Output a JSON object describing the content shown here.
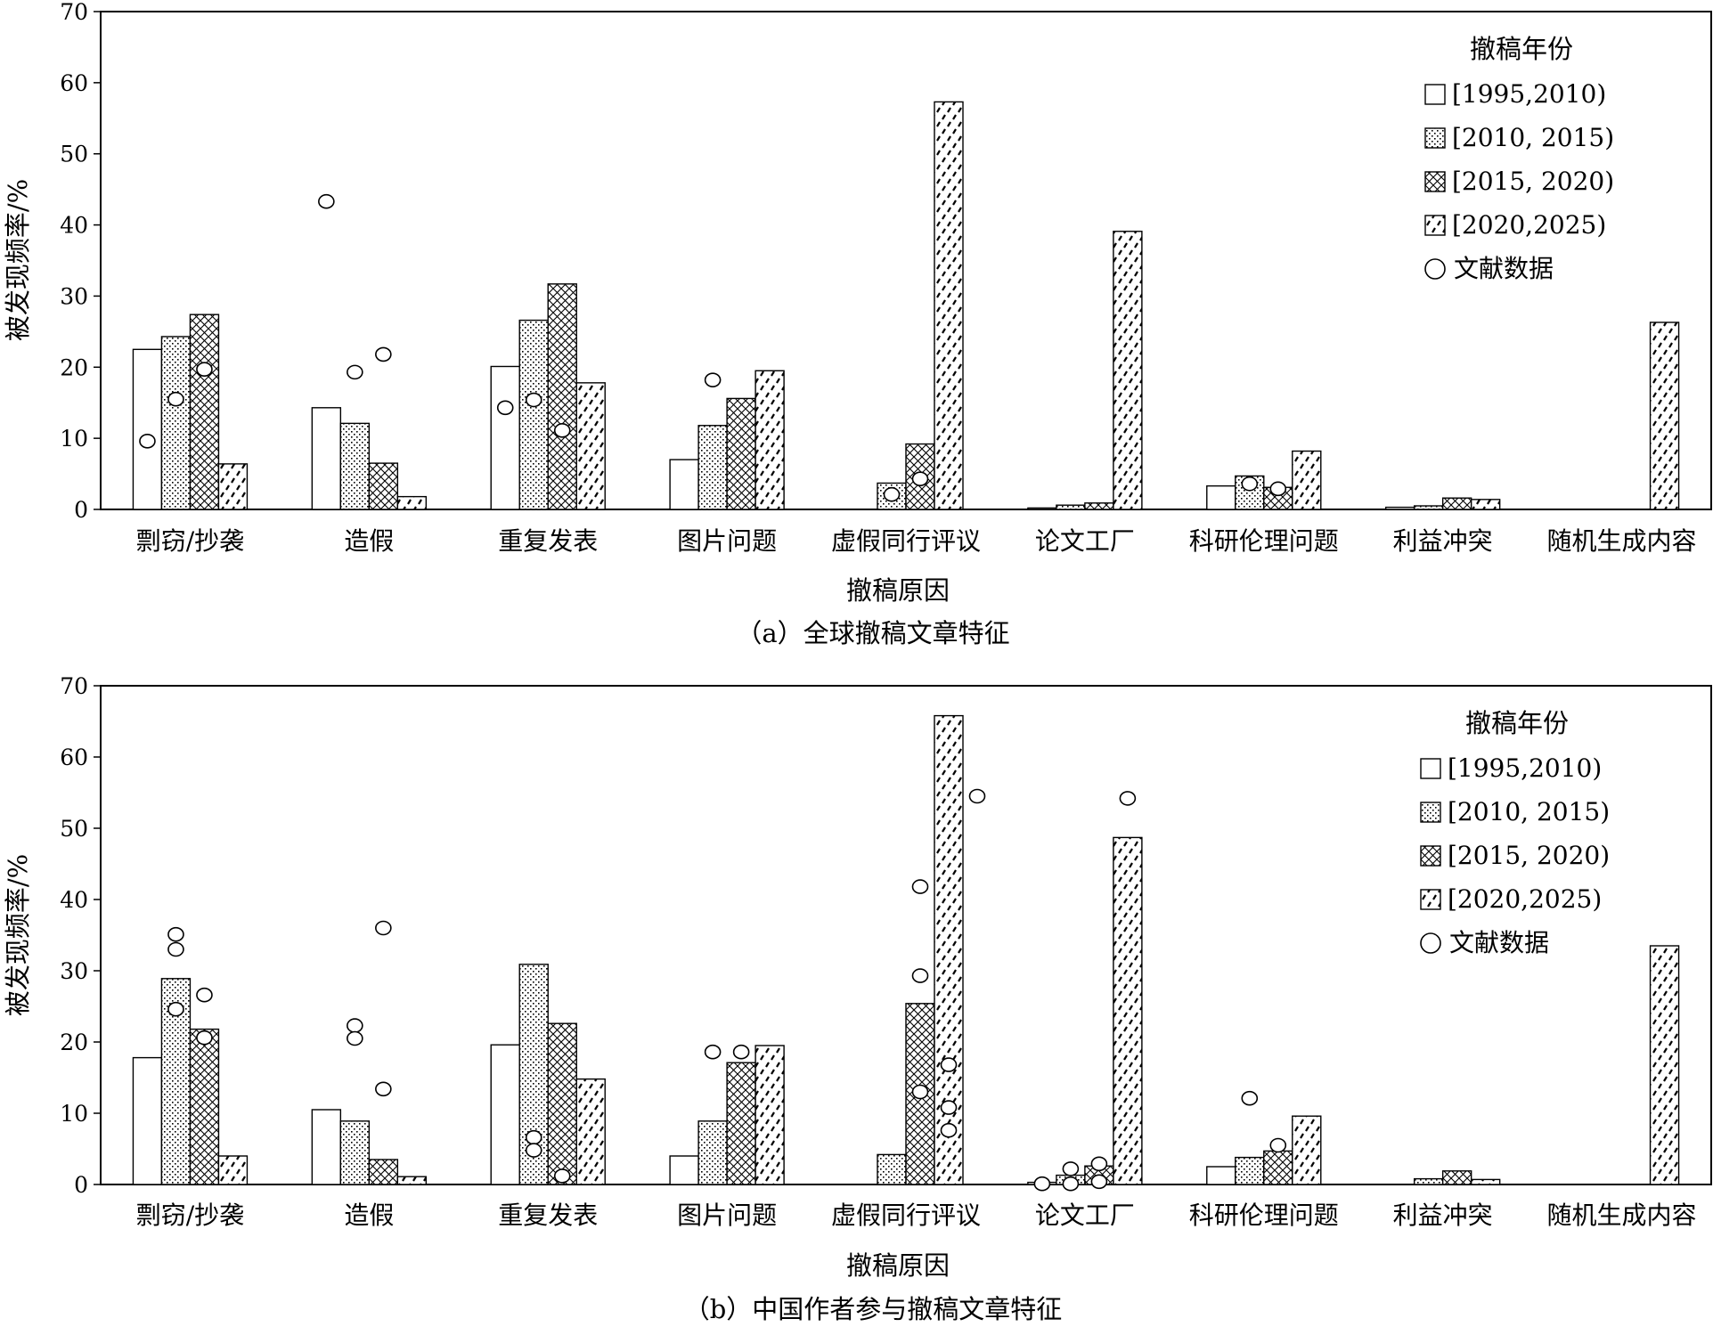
{
  "chart_data": [
    {
      "type": "bar",
      "caption": "（a）全球撤稿文章特征",
      "xlabel": "撤稿原因",
      "ylabel": "被发现频率/%",
      "ylim": [
        0,
        70
      ],
      "yticks": [
        0,
        10,
        20,
        30,
        40,
        50,
        60,
        70
      ],
      "categories": [
        "剽窃/抄袭",
        "造假",
        "重复发表",
        "图片问题",
        "虚假同行评议",
        "论文工厂",
        "科研伦理问题",
        "利益冲突",
        "随机生成内容"
      ],
      "legend_title": "撤稿年份",
      "legend_position": "top-right",
      "series": [
        {
          "name": "[1995,2010)",
          "pattern": "blank",
          "values": [
            22.5,
            14.3,
            20.1,
            7.0,
            null,
            0.2,
            3.3,
            0.3,
            null
          ]
        },
        {
          "name": "[2010, 2015)",
          "pattern": "dots",
          "values": [
            24.3,
            12.1,
            26.6,
            11.8,
            3.7,
            0.6,
            4.7,
            0.5,
            null
          ]
        },
        {
          "name": "[2015, 2020)",
          "pattern": "crosshatch",
          "values": [
            27.4,
            6.5,
            31.7,
            15.6,
            9.2,
            0.9,
            3.1,
            1.6,
            null
          ]
        },
        {
          "name": "[2020,2025)",
          "pattern": "dashes",
          "values": [
            6.4,
            1.8,
            17.8,
            19.5,
            57.3,
            39.1,
            8.2,
            1.4,
            26.3
          ]
        }
      ],
      "literature_label": "文献数据",
      "literature_points": [
        {
          "category": "剽窃/抄袭",
          "slot": 0.5,
          "y": 9.6
        },
        {
          "category": "剽窃/抄袭",
          "slot": 1.5,
          "y": 15.5
        },
        {
          "category": "剽窃/抄袭",
          "slot": 2.5,
          "y": 19.7
        },
        {
          "category": "造假",
          "slot": 0.5,
          "y": 43.3
        },
        {
          "category": "造假",
          "slot": 1.5,
          "y": 19.3
        },
        {
          "category": "造假",
          "slot": 2.5,
          "y": 21.8
        },
        {
          "category": "重复发表",
          "slot": 0.5,
          "y": 14.3
        },
        {
          "category": "重复发表",
          "slot": 1.5,
          "y": 15.4
        },
        {
          "category": "重复发表",
          "slot": 2.5,
          "y": 11.1
        },
        {
          "category": "图片问题",
          "slot": 1.5,
          "y": 18.2
        },
        {
          "category": "虚假同行评议",
          "slot": 1.5,
          "y": 2.1
        },
        {
          "category": "虚假同行评议",
          "slot": 2.5,
          "y": 4.3
        },
        {
          "category": "科研伦理问题",
          "slot": 1.5,
          "y": 3.6
        },
        {
          "category": "科研伦理问题",
          "slot": 2.5,
          "y": 2.9
        }
      ]
    },
    {
      "type": "bar",
      "caption": "（b）中国作者参与撤稿文章特征",
      "xlabel": "撤稿原因",
      "ylabel": "被发现频率/%",
      "ylim": [
        0,
        70
      ],
      "yticks": [
        0,
        10,
        20,
        30,
        40,
        50,
        60,
        70
      ],
      "categories": [
        "剽窃/抄袭",
        "造假",
        "重复发表",
        "图片问题",
        "虚假同行评议",
        "论文工厂",
        "科研伦理问题",
        "利益冲突",
        "随机生成内容"
      ],
      "legend_title": "撤稿年份",
      "legend_position": "top-right",
      "series": [
        {
          "name": "[1995,2010)",
          "pattern": "blank",
          "values": [
            17.8,
            10.5,
            19.6,
            4.0,
            null,
            0.3,
            2.5,
            null,
            null
          ]
        },
        {
          "name": "[2010, 2015)",
          "pattern": "dots",
          "values": [
            28.9,
            8.9,
            30.9,
            8.9,
            4.2,
            1.3,
            3.8,
            0.8,
            null
          ]
        },
        {
          "name": "[2015, 2020)",
          "pattern": "crosshatch",
          "values": [
            21.8,
            3.5,
            22.6,
            17.1,
            25.4,
            2.6,
            4.7,
            1.9,
            null
          ]
        },
        {
          "name": "[2020,2025)",
          "pattern": "dashes",
          "values": [
            4.0,
            1.1,
            14.8,
            19.5,
            65.8,
            48.7,
            9.6,
            0.7,
            33.5
          ]
        }
      ],
      "literature_label": "文献数据",
      "literature_points": [
        {
          "category": "剽窃/抄袭",
          "slot": 1.5,
          "y": 35.1
        },
        {
          "category": "剽窃/抄袭",
          "slot": 1.5,
          "y": 33.0
        },
        {
          "category": "剽窃/抄袭",
          "slot": 1.5,
          "y": 24.6
        },
        {
          "category": "剽窃/抄袭",
          "slot": 2.5,
          "y": 26.6
        },
        {
          "category": "剽窃/抄袭",
          "slot": 2.5,
          "y": 20.6
        },
        {
          "category": "造假",
          "slot": 1.5,
          "y": 22.3
        },
        {
          "category": "造假",
          "slot": 1.5,
          "y": 20.5
        },
        {
          "category": "造假",
          "slot": 2.5,
          "y": 36.0
        },
        {
          "category": "造假",
          "slot": 2.5,
          "y": 13.4
        },
        {
          "category": "重复发表",
          "slot": 1.5,
          "y": 6.6
        },
        {
          "category": "重复发表",
          "slot": 1.5,
          "y": 4.8
        },
        {
          "category": "重复发表",
          "slot": 2.5,
          "y": 1.2
        },
        {
          "category": "图片问题",
          "slot": 1.5,
          "y": 18.6
        },
        {
          "category": "图片问题",
          "slot": 2.5,
          "y": 18.6
        },
        {
          "category": "虚假同行评议",
          "slot": 2.5,
          "y": 41.8
        },
        {
          "category": "虚假同行评议",
          "slot": 2.5,
          "y": 29.3
        },
        {
          "category": "虚假同行评议",
          "slot": 2.5,
          "y": 13.0
        },
        {
          "category": "虚假同行评议",
          "slot": 3.5,
          "y": 16.8
        },
        {
          "category": "虚假同行评议",
          "slot": 3.5,
          "y": 10.8
        },
        {
          "category": "虚假同行评议",
          "slot": 3.5,
          "y": 7.6
        },
        {
          "category": "虚假同行评议",
          "slot": 4.5,
          "y": 54.5
        },
        {
          "category": "论文工厂",
          "slot": 0.5,
          "y": 0.1
        },
        {
          "category": "论文工厂",
          "slot": 1.5,
          "y": 2.2
        },
        {
          "category": "论文工厂",
          "slot": 1.5,
          "y": 0.1
        },
        {
          "category": "论文工厂",
          "slot": 2.5,
          "y": 2.9
        },
        {
          "category": "论文工厂",
          "slot": 2.5,
          "y": 0.4
        },
        {
          "category": "论文工厂",
          "slot": 3.5,
          "y": 54.2
        },
        {
          "category": "科研伦理问题",
          "slot": 1.5,
          "y": 12.1
        },
        {
          "category": "科研伦理问题",
          "slot": 2.5,
          "y": 5.5
        }
      ]
    }
  ]
}
